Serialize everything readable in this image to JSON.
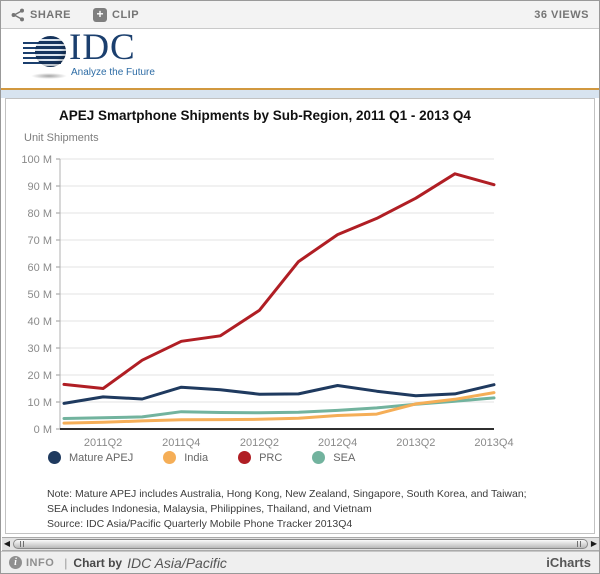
{
  "toolbar": {
    "share_label": "SHARE",
    "clip_label": "CLIP",
    "views": "36 VIEWS"
  },
  "logo": {
    "name": "IDC",
    "tagline": "Analyze the Future"
  },
  "chart_data": {
    "type": "line",
    "title": "APEJ Smartphone Shipments by Sub-Region, 2011 Q1 - 2013 Q4",
    "ylabel": "Unit Shipments",
    "ylim": [
      0,
      100
    ],
    "grid": true,
    "legend_position": "bottom",
    "categories": [
      "2011Q1",
      "2011Q2",
      "2011Q3",
      "2011Q4",
      "2012Q1",
      "2012Q2",
      "2012Q3",
      "2012Q4",
      "2013Q1",
      "2013Q2",
      "2013Q3",
      "2013Q4"
    ],
    "x_tick_labels": [
      "2011Q2",
      "2011Q4",
      "2012Q2",
      "2012Q4",
      "2013Q2",
      "2013Q4"
    ],
    "x_tick_positions": [
      1,
      3,
      5,
      7,
      9,
      11
    ],
    "y_tick_labels": [
      "0 M",
      "10 M",
      "20 M",
      "30 M",
      "40 M",
      "50 M",
      "60 M",
      "70 M",
      "80 M",
      "90 M",
      "100 M"
    ],
    "y_tick_values": [
      0,
      10,
      20,
      30,
      40,
      50,
      60,
      70,
      80,
      90,
      100
    ],
    "series": [
      {
        "name": "Mature APEJ",
        "color": "#1f3a5f",
        "values": [
          9.5,
          11.9,
          11.1,
          15.5,
          14.5,
          12.9,
          13,
          16.1,
          14,
          12.3,
          13,
          16.4
        ]
      },
      {
        "name": "India",
        "color": "#f5ae57",
        "values": [
          2.2,
          2.5,
          3,
          3.4,
          3.5,
          3.6,
          4,
          5,
          5.5,
          9.3,
          11,
          13.5
        ]
      },
      {
        "name": "PRC",
        "color": "#b01e24",
        "values": [
          16.5,
          15,
          25.5,
          32.5,
          34.5,
          44,
          62,
          72,
          78,
          85.5,
          94.5,
          90.5
        ]
      },
      {
        "name": "SEA",
        "color": "#72b39e",
        "values": [
          3.9,
          4.2,
          4.5,
          6.4,
          6.1,
          6,
          6.2,
          6.9,
          7.8,
          9.2,
          10.3,
          11.5
        ]
      }
    ],
    "note": "Note: Mature APEJ includes Australia, Hong Kong, New Zealand, Singapore, South Korea, and Taiwan; SEA includes Indonesia, Malaysia, Philippines, Thailand, and Vietnam",
    "source": "Source: IDC Asia/Pacific Quarterly Mobile Phone Tracker 2013Q4"
  },
  "footer": {
    "info_label": "INFO",
    "separator": "|",
    "chart_by": "Chart by",
    "brand": "IDC Asia/Pacific",
    "provider": "iCharts"
  }
}
